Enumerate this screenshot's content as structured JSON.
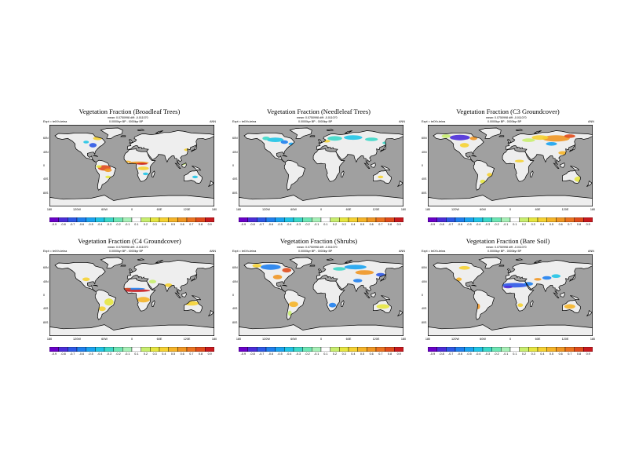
{
  "panels": [
    {
      "title": "Vegetation Fraction (Broadleaf Trees)",
      "subtitle_1": "mean: 0.0750998 diff: -0.011070",
      "subtitle_2": "0.0000kyr BP - 0000kyr BP",
      "expt": "Expt = teIXh-teiea",
      "season": "ANN",
      "variant": "broadleaf"
    },
    {
      "title": "Vegetation Fraction (Needleleaf Trees)",
      "subtitle_1": "mean: 0.0750998 diff: -0.011070",
      "subtitle_2": "0.0000kyr BP - 0000kyr BP",
      "expt": "Expt = teIXh-teiea",
      "season": "ANN",
      "variant": "needleleaf"
    },
    {
      "title": "Vegetation Fraction (C3 Groundcover)",
      "subtitle_1": "mean: 0.0750998 diff: -0.011070",
      "subtitle_2": "0.0000kyr BP - 0000kyr BP",
      "expt": "Expt = teIXh-teiea",
      "season": "ANN",
      "variant": "c3"
    },
    {
      "title": "Vegetation Fraction (C4 Groundcover)",
      "subtitle_1": "mean: 0.0750998 diff: -0.011070",
      "subtitle_2": "0.0000kyr BP - 0000kyr BP",
      "expt": "Expt = teIXh-teiea",
      "season": "ANN",
      "variant": "c4"
    },
    {
      "title": "Vegetation Fraction (Shrubs)",
      "subtitle_1": "mean: 0.0750998 diff: -0.011070",
      "subtitle_2": "0.0000kyr BP - 0000kyr BP",
      "expt": "Expt = teIXh-teiea",
      "season": "ANN",
      "variant": "shrubs"
    },
    {
      "title": "Vegetation Fraction (Bare Soil)",
      "subtitle_1": "mean: 0.0750998 diff: -0.011070",
      "subtitle_2": "0.0000kyr BP - 0000kyr BP",
      "expt": "Expt = teIXh-teiea",
      "season": "ANN",
      "variant": "baresoil"
    }
  ],
  "lon_ticks": [
    "180",
    "120W",
    "60W",
    "0",
    "60E",
    "120E",
    "180"
  ],
  "lat_ticks": [
    "60N",
    "40N",
    "0",
    "40S",
    "80S"
  ],
  "colorbar": {
    "labels": [
      "-0.9",
      "-0.8",
      "-0.7",
      "-0.6",
      "-0.5",
      "-0.4",
      "-0.3",
      "-0.2",
      "-0.1",
      "0.1",
      "0.2",
      "0.3",
      "0.4",
      "0.5",
      "0.6",
      "0.7",
      "0.8",
      "0.9"
    ],
    "colors": [
      "#6a00c8",
      "#4b2cd8",
      "#2e58e6",
      "#1f7fee",
      "#1aa3f0",
      "#20c4e6",
      "#3cd8c8",
      "#6ee6b4",
      "#a8f0b8",
      "#ffffff",
      "#c8ee6e",
      "#e6e640",
      "#f5d232",
      "#f5b428",
      "#f09623",
      "#eb7320",
      "#e04b1c",
      "#c8191e"
    ]
  },
  "colors": {
    "ocean": "#a0a0a0",
    "land": "#eeeeee",
    "coast": "#000000"
  }
}
